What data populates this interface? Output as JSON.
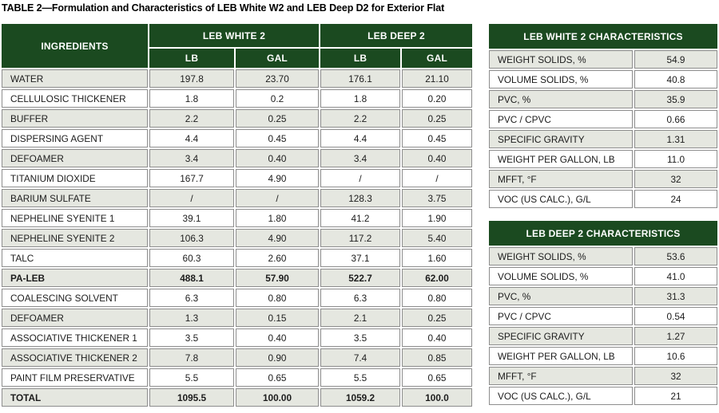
{
  "page_title": "TABLE 2—Formulation and Characteristics of LEB White W2 and LEB Deep D2 for Exterior Flat",
  "colors": {
    "header_green": "#1b4a20",
    "row_shaded": "#e5e7e0",
    "border_gray": "#8d8d8d",
    "text": "#1c1c1c"
  },
  "chart_data": [
    {
      "type": "table",
      "name": "formulation",
      "corner_header": "INGREDIENTS",
      "group_headers": [
        "LEB WHITE 2",
        "LEB DEEP 2"
      ],
      "unit_headers": [
        "LB",
        "GAL",
        "LB",
        "GAL"
      ],
      "rows": [
        {
          "name": "WATER",
          "values": [
            "197.8",
            "23.70",
            "176.1",
            "21.10"
          ]
        },
        {
          "name": "CELLULOSIC THICKENER",
          "values": [
            "1.8",
            "0.2",
            "1.8",
            "0.20"
          ]
        },
        {
          "name": "BUFFER",
          "values": [
            "2.2",
            "0.25",
            "2.2",
            "0.25"
          ]
        },
        {
          "name": "DISPERSING AGENT",
          "values": [
            "4.4",
            "0.45",
            "4.4",
            "0.45"
          ]
        },
        {
          "name": "DEFOAMER",
          "values": [
            "3.4",
            "0.40",
            "3.4",
            "0.40"
          ]
        },
        {
          "name": "TITANIUM DIOXIDE",
          "values": [
            "167.7",
            "4.90",
            "/",
            "/"
          ]
        },
        {
          "name": "BARIUM SULFATE",
          "values": [
            "/",
            "/",
            "128.3",
            "3.75"
          ]
        },
        {
          "name": "NEPHELINE SYENITE 1",
          "values": [
            "39.1",
            "1.80",
            "41.2",
            "1.90"
          ]
        },
        {
          "name": "NEPHELINE SYENITE 2",
          "values": [
            "106.3",
            "4.90",
            "117.2",
            "5.40"
          ]
        },
        {
          "name": "TALC",
          "values": [
            "60.3",
            "2.60",
            "37.1",
            "1.60"
          ]
        },
        {
          "name": "PA-LEB",
          "values": [
            "488.1",
            "57.90",
            "522.7",
            "62.00"
          ],
          "bold": true
        },
        {
          "name": "COALESCING SOLVENT",
          "values": [
            "6.3",
            "0.80",
            "6.3",
            "0.80"
          ]
        },
        {
          "name": "DEFOAMER",
          "values": [
            "1.3",
            "0.15",
            "2.1",
            "0.25"
          ]
        },
        {
          "name": "ASSOCIATIVE THICKENER 1",
          "values": [
            "3.5",
            "0.40",
            "3.5",
            "0.40"
          ]
        },
        {
          "name": "ASSOCIATIVE THICKENER 2",
          "values": [
            "7.8",
            "0.90",
            "7.4",
            "0.85"
          ]
        },
        {
          "name": "PAINT FILM PRESERVATIVE",
          "values": [
            "5.5",
            "0.65",
            "5.5",
            "0.65"
          ]
        },
        {
          "name": "TOTAL",
          "values": [
            "1095.5",
            "100.00",
            "1059.2",
            "100.0"
          ],
          "bold": true
        }
      ]
    },
    {
      "type": "table",
      "name": "leb-white-2-characteristics",
      "title": "LEB WHITE 2 CHARACTERISTICS",
      "rows": [
        {
          "label": "WEIGHT SOLIDS, %",
          "value": "54.9"
        },
        {
          "label": "VOLUME SOLIDS, %",
          "value": "40.8"
        },
        {
          "label": "PVC, %",
          "value": "35.9"
        },
        {
          "label": "PVC / CPVC",
          "value": "0.66"
        },
        {
          "label": "SPECIFIC GRAVITY",
          "value": "1.31"
        },
        {
          "label": "WEIGHT PER GALLON, LB",
          "value": "11.0"
        },
        {
          "label": "MFFT, °F",
          "value": "32"
        },
        {
          "label": "VOC (US CALC.), G/L",
          "value": "24"
        }
      ]
    },
    {
      "type": "table",
      "name": "leb-deep-2-characteristics",
      "title": "LEB DEEP 2 CHARACTERISTICS",
      "rows": [
        {
          "label": "WEIGHT SOLIDS, %",
          "value": "53.6"
        },
        {
          "label": "VOLUME SOLIDS, %",
          "value": "41.0"
        },
        {
          "label": "PVC, %",
          "value": "31.3"
        },
        {
          "label": "PVC / CPVC",
          "value": "0.54"
        },
        {
          "label": "SPECIFIC GRAVITY",
          "value": "1.27"
        },
        {
          "label": "WEIGHT PER GALLON, LB",
          "value": "10.6"
        },
        {
          "label": "MFFT, °F",
          "value": "32"
        },
        {
          "label": "VOC (US CALC.), G/L",
          "value": "21"
        }
      ]
    }
  ]
}
